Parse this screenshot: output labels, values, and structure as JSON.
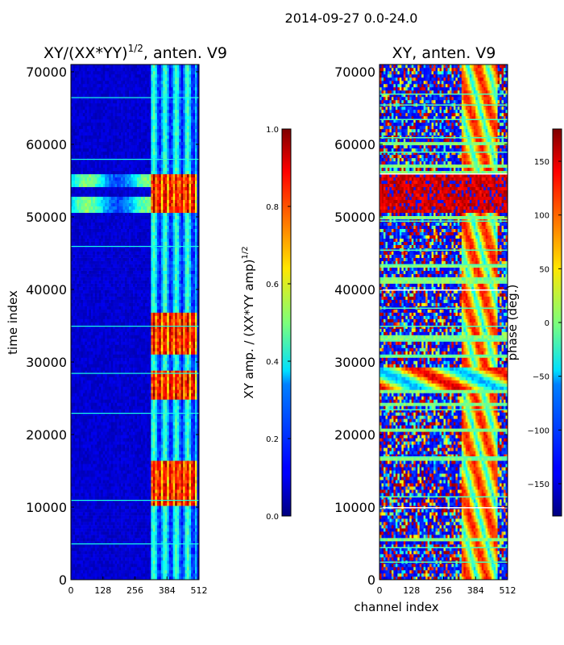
{
  "suptitle": "2014-09-27 0.0-24.0",
  "chart_data": [
    {
      "type": "heatmap",
      "title_base": "XY/(XX*YY)",
      "title_exp": "1/2",
      "title_suffix": ", anten. V9",
      "ylabel": "time index",
      "xlabel": "",
      "xlim": [
        0,
        512
      ],
      "ylim": [
        0,
        71000
      ],
      "xticks": [
        0,
        128,
        256,
        384,
        512
      ],
      "yticks": [
        0,
        10000,
        20000,
        30000,
        40000,
        50000,
        60000,
        70000
      ],
      "colorbar": {
        "label_base": "XY amp. / (XX*YY amp)",
        "label_exp": "1/2",
        "min": 0.0,
        "max": 1.0,
        "ticks": [
          "0.0",
          "0.2",
          "0.4",
          "0.6",
          "0.8",
          "1.0"
        ],
        "colormap": "jet"
      },
      "features": {
        "bright_channel_range": [
          320,
          500
        ],
        "bright_time_bands": [
          [
            10000,
            16500
          ],
          [
            25000,
            29000
          ],
          [
            31000,
            37000
          ],
          [
            50500,
            56000
          ]
        ]
      }
    },
    {
      "type": "heatmap",
      "title": "XY, anten. V9",
      "xlabel": "channel index",
      "ylabel": "",
      "xlim": [
        0,
        512
      ],
      "ylim": [
        0,
        71000
      ],
      "xticks": [
        0,
        128,
        256,
        384,
        512
      ],
      "yticks": [
        0,
        10000,
        20000,
        30000,
        40000,
        50000,
        60000,
        70000
      ],
      "colorbar": {
        "label": "phase (deg.)",
        "min": -180,
        "max": 180,
        "ticks": [
          "150",
          "100",
          "50",
          "0",
          "−50",
          "−100",
          "−150"
        ],
        "colormap": "jet"
      },
      "features": {
        "red_band": [
          50500,
          56000
        ],
        "wave_band": [
          26000,
          29500
        ]
      }
    }
  ]
}
